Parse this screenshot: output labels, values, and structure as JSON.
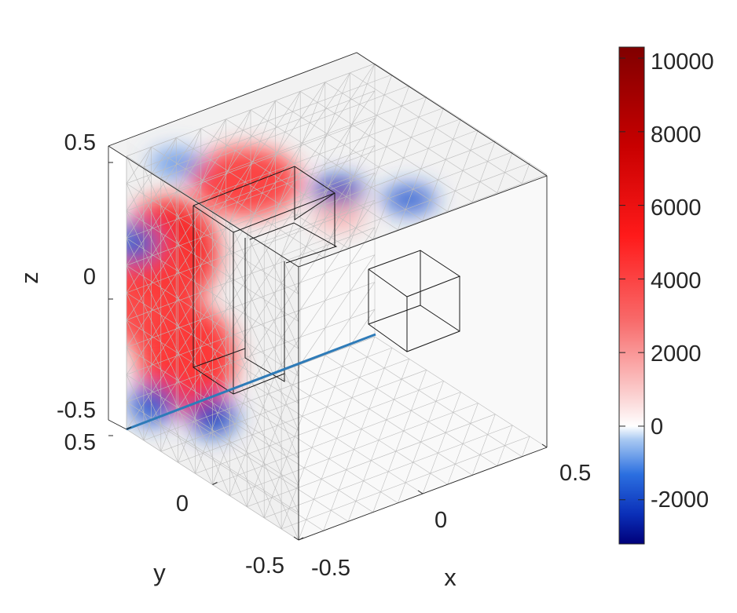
{
  "chart_data": {
    "type": "heatmap",
    "subtype": "3d-slice-volume",
    "title": "",
    "xlabel": "x",
    "ylabel": "y",
    "zlabel": "z",
    "xlim": [
      -0.5,
      0.5
    ],
    "ylim": [
      -0.5,
      0.5
    ],
    "zlim": [
      -0.5,
      0.5
    ],
    "xticks": [
      "-0.5",
      "0",
      "0.5"
    ],
    "yticks": [
      "-0.5",
      "0",
      "0.5"
    ],
    "zticks": [
      "-0.5",
      "0",
      "0.5"
    ],
    "grid": true,
    "colorbar": {
      "position": "right",
      "limits": [
        -3200,
        10300
      ],
      "ticks": [
        "-2000",
        "0",
        "2000",
        "4000",
        "6000",
        "8000",
        "10000"
      ],
      "tick_values": [
        -2000,
        0,
        2000,
        4000,
        6000,
        8000,
        10000
      ],
      "colors": {
        "min": "#00007a",
        "mid_low": "#1f6fe0",
        "zero": "#ffffff",
        "mid_high": "#ff2a2a",
        "max": "#800000"
      }
    },
    "slices": [
      {
        "plane": "x",
        "value": -0.5,
        "features": [
          {
            "y": 0.25,
            "z": 0.25,
            "value": 5500
          },
          {
            "y": 0.15,
            "z": -0.1,
            "value": 5000
          },
          {
            "y": 0.35,
            "z": 0.05,
            "value": 4200
          },
          {
            "y": 0.45,
            "z": 0.2,
            "value": -1500
          },
          {
            "y": 0.35,
            "z": -0.35,
            "value": -1800
          },
          {
            "y": 0.0,
            "z": -0.25,
            "value": -2200
          }
        ]
      },
      {
        "plane": "z",
        "value": 0.5,
        "features": [
          {
            "x": -0.3,
            "y": 0.1,
            "value": 4500
          },
          {
            "x": -0.1,
            "y": -0.15,
            "value": -2500
          },
          {
            "x": 0.05,
            "y": -0.35,
            "value": -1800
          },
          {
            "x": -0.2,
            "y": -0.3,
            "value": 1500
          },
          {
            "x": -0.4,
            "y": 0.35,
            "value": -1000
          }
        ]
      }
    ],
    "annotations": [
      {
        "type": "line",
        "color": "#2e7bb8",
        "from": [
          -0.5,
          0.5,
          -0.5
        ],
        "to": [
          -0.5,
          -0.5,
          -0.5
        ]
      },
      {
        "type": "box",
        "x": [
          -0.5,
          -0.2
        ],
        "y": [
          0.0,
          0.3
        ],
        "z": [
          -0.35,
          0.35
        ]
      },
      {
        "type": "box",
        "x": [
          -0.5,
          0.2
        ],
        "y": [
          -0.5,
          -0.2
        ],
        "z": [
          -0.2,
          0.1
        ]
      }
    ]
  }
}
